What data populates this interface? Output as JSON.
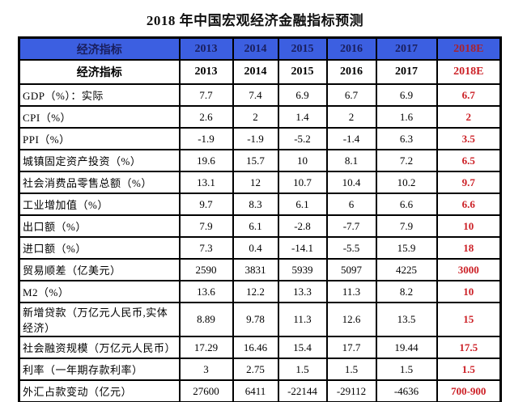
{
  "title": "2018 年中国宏观经济金融指标预测",
  "colors": {
    "header_bg": "#3C5FE1",
    "header_text": "#1A1F5E",
    "forecast_red": "#CC2026",
    "header_forecast_red": "#A8232F",
    "border": "#000000"
  },
  "table": {
    "header": [
      "经济指标",
      "2013",
      "2014",
      "2015",
      "2016",
      "2017",
      "2018E"
    ],
    "subheader": [
      "经济指标",
      "2013",
      "2014",
      "2015",
      "2016",
      "2017",
      "2018E"
    ],
    "rows": [
      {
        "label": "GDP（%）：实际",
        "values": [
          "7.7",
          "7.4",
          "6.9",
          "6.7",
          "6.9"
        ],
        "forecast": "6.7"
      },
      {
        "label": "CPI（%）",
        "values": [
          "2.6",
          "2",
          "1.4",
          "2",
          "1.6"
        ],
        "forecast": "2"
      },
      {
        "label": "PPI（%）",
        "values": [
          "-1.9",
          "-1.9",
          "-5.2",
          "-1.4",
          "6.3"
        ],
        "forecast": "3.5"
      },
      {
        "label": "城镇固定资产投资（%）",
        "values": [
          "19.6",
          "15.7",
          "10",
          "8.1",
          "7.2"
        ],
        "forecast": "6.5"
      },
      {
        "label": "社会消费品零售总额（%）",
        "values": [
          "13.1",
          "12",
          "10.7",
          "10.4",
          "10.2"
        ],
        "forecast": "9.7"
      },
      {
        "label": "工业增加值（%）",
        "values": [
          "9.7",
          "8.3",
          "6.1",
          "6",
          "6.6"
        ],
        "forecast": "6.6"
      },
      {
        "label": "出口额（%）",
        "values": [
          "7.9",
          "6.1",
          "-2.8",
          "-7.7",
          "7.9"
        ],
        "forecast": "10"
      },
      {
        "label": "进口额（%）",
        "values": [
          "7.3",
          "0.4",
          "-14.1",
          "-5.5",
          "15.9"
        ],
        "forecast": "18"
      },
      {
        "label": "贸易顺差（亿美元）",
        "values": [
          "2590",
          "3831",
          "5939",
          "5097",
          "4225"
        ],
        "forecast": "3000"
      },
      {
        "label": "M2（%）",
        "values": [
          "13.6",
          "12.2",
          "13.3",
          "11.3",
          "8.2"
        ],
        "forecast": "10"
      },
      {
        "label": "新增贷款（万亿元人民币,实体经济）",
        "values": [
          "8.89",
          "9.78",
          "11.3",
          "12.6",
          "13.5"
        ],
        "forecast": "15"
      },
      {
        "label": "社会融资规模（万亿元人民币）",
        "values": [
          "17.29",
          "16.46",
          "15.4",
          "17.7",
          "19.44"
        ],
        "forecast": "17.5"
      },
      {
        "label": "利率（一年期存款利率）",
        "values": [
          "3",
          "2.75",
          "1.5",
          "1.5",
          "1.5"
        ],
        "forecast": "1.5"
      },
      {
        "label": "外汇占款变动（亿元）",
        "values": [
          "27600",
          "6411",
          "-22144",
          "-29112",
          "-4636"
        ],
        "forecast": "700-900"
      }
    ]
  },
  "chart_data": {
    "type": "table",
    "title": "2018 年中国宏观经济金融指标预测",
    "columns": [
      "经济指标",
      "2013",
      "2014",
      "2015",
      "2016",
      "2017",
      "2018E"
    ],
    "rows": [
      [
        "GDP（%）：实际",
        7.7,
        7.4,
        6.9,
        6.7,
        6.9,
        6.7
      ],
      [
        "CPI（%）",
        2.6,
        2,
        1.4,
        2,
        1.6,
        2
      ],
      [
        "PPI（%）",
        -1.9,
        -1.9,
        -5.2,
        -1.4,
        6.3,
        3.5
      ],
      [
        "城镇固定资产投资（%）",
        19.6,
        15.7,
        10,
        8.1,
        7.2,
        6.5
      ],
      [
        "社会消费品零售总额（%）",
        13.1,
        12,
        10.7,
        10.4,
        10.2,
        9.7
      ],
      [
        "工业增加值（%）",
        9.7,
        8.3,
        6.1,
        6,
        6.6,
        6.6
      ],
      [
        "出口额（%）",
        7.9,
        6.1,
        -2.8,
        -7.7,
        7.9,
        10
      ],
      [
        "进口额（%）",
        7.3,
        0.4,
        -14.1,
        -5.5,
        15.9,
        18
      ],
      [
        "贸易顺差（亿美元）",
        2590,
        3831,
        5939,
        5097,
        4225,
        3000
      ],
      [
        "M2（%）",
        13.6,
        12.2,
        13.3,
        11.3,
        8.2,
        10
      ],
      [
        "新增贷款（万亿元人民币,实体经济）",
        8.89,
        9.78,
        11.3,
        12.6,
        13.5,
        15
      ],
      [
        "社会融资规模（万亿元人民币）",
        17.29,
        16.46,
        15.4,
        17.7,
        19.44,
        17.5
      ],
      [
        "利率（一年期存款利率）",
        3,
        2.75,
        1.5,
        1.5,
        1.5,
        1.5
      ],
      [
        "外汇占款变动（亿元）",
        27600,
        6411,
        -22144,
        -29112,
        -4636,
        "700-900"
      ]
    ],
    "notes": "2018E column is a forecast, shown in red; header row has blue background"
  }
}
